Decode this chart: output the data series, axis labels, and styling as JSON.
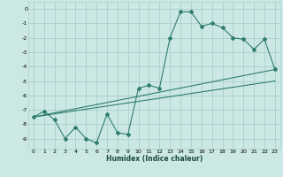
{
  "xlabel": "Humidex (Indice chaleur)",
  "bg_color": "#cce8e4",
  "grid_color": "#aacfcb",
  "line_color": "#2e7d6e",
  "xlim": [
    -0.5,
    23.5
  ],
  "ylim": [
    -9.7,
    0.5
  ],
  "xticks": [
    0,
    1,
    2,
    3,
    4,
    5,
    6,
    7,
    8,
    9,
    10,
    11,
    12,
    13,
    14,
    15,
    16,
    17,
    18,
    19,
    20,
    21,
    22,
    23
  ],
  "yticks": [
    0,
    -1,
    -2,
    -3,
    -4,
    -5,
    -6,
    -7,
    -8,
    -9
  ],
  "series1_x": [
    0,
    1,
    2,
    3,
    4,
    5,
    6,
    7,
    8,
    9,
    10,
    11,
    12,
    13,
    14,
    15,
    16,
    17,
    18,
    19,
    20,
    21,
    22,
    23
  ],
  "series1_y": [
    -7.5,
    -7.1,
    -7.7,
    -9.0,
    -8.2,
    -9.0,
    -9.3,
    -7.3,
    -8.6,
    -8.7,
    -5.5,
    -5.3,
    -5.5,
    -2.0,
    -0.2,
    -0.2,
    -1.2,
    -1.0,
    -1.3,
    -2.0,
    -2.1,
    -2.8,
    -2.1,
    -4.2
  ],
  "series2_x": [
    0,
    23
  ],
  "series2_y": [
    -7.5,
    -4.2
  ],
  "series3_x": [
    0,
    23
  ],
  "series3_y": [
    -7.5,
    -5.0
  ]
}
